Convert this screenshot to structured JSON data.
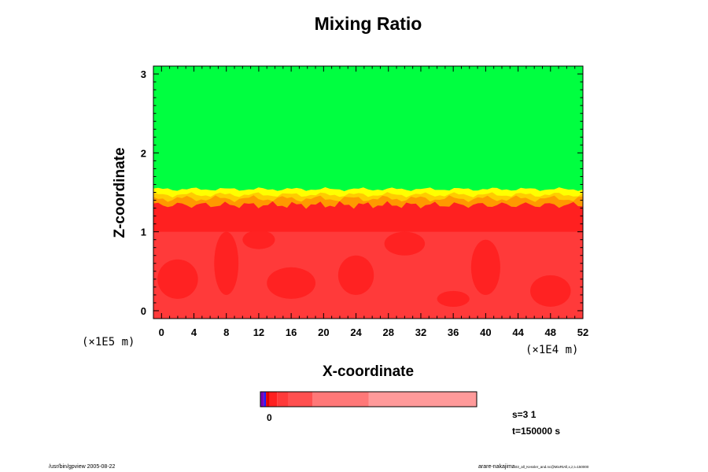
{
  "chart_data": {
    "type": "heatmap",
    "title": "Mixing Ratio",
    "xlabel": "X-coordinate",
    "ylabel": "Z-coordinate",
    "x_scale_label": "(×1E4 m)",
    "y_scale_label": "(×1E5 m)",
    "xlim": [
      -1,
      52
    ],
    "ylim": [
      -0.1,
      3.1
    ],
    "x_ticks": [
      0,
      4,
      8,
      12,
      16,
      20,
      24,
      28,
      32,
      36,
      40,
      44,
      48,
      52
    ],
    "y_ticks": [
      0,
      1,
      2,
      3
    ],
    "grid": false,
    "regions": [
      {
        "field": "upper",
        "z_range": [
          1.45,
          3.1
        ],
        "color": "#00ff40"
      },
      {
        "field": "transition",
        "z_range": [
          1.35,
          1.55
        ],
        "colors": [
          "#ffff00",
          "#ffcc00",
          "#ff9900"
        ]
      },
      {
        "field": "lower",
        "z_range": [
          -0.1,
          1.4
        ],
        "colors": [
          "#ff2020",
          "#ff3a3a"
        ]
      }
    ],
    "colorbar": {
      "label": "0",
      "segments": [
        {
          "color": "#7a00b8",
          "weight": 2
        },
        {
          "color": "#1a1aff",
          "weight": 1
        },
        {
          "color": "#e80000",
          "weight": 2
        },
        {
          "color": "#ff2020",
          "weight": 4
        },
        {
          "color": "#ff3a3a",
          "weight": 6
        },
        {
          "color": "#ff5050",
          "weight": 13
        },
        {
          "color": "#ff7878",
          "weight": 30
        },
        {
          "color": "#ff9a9a",
          "weight": 58
        }
      ]
    },
    "info": [
      "s=3 1",
      "t=150000 s"
    ]
  },
  "footer": {
    "left": "/usr/bin/gpview 2005-08-22",
    "right_main": "arare-nakajima",
    "right_small": "03_all_Kessler_and.nc@MixRtAll,x,z,t=150000"
  }
}
